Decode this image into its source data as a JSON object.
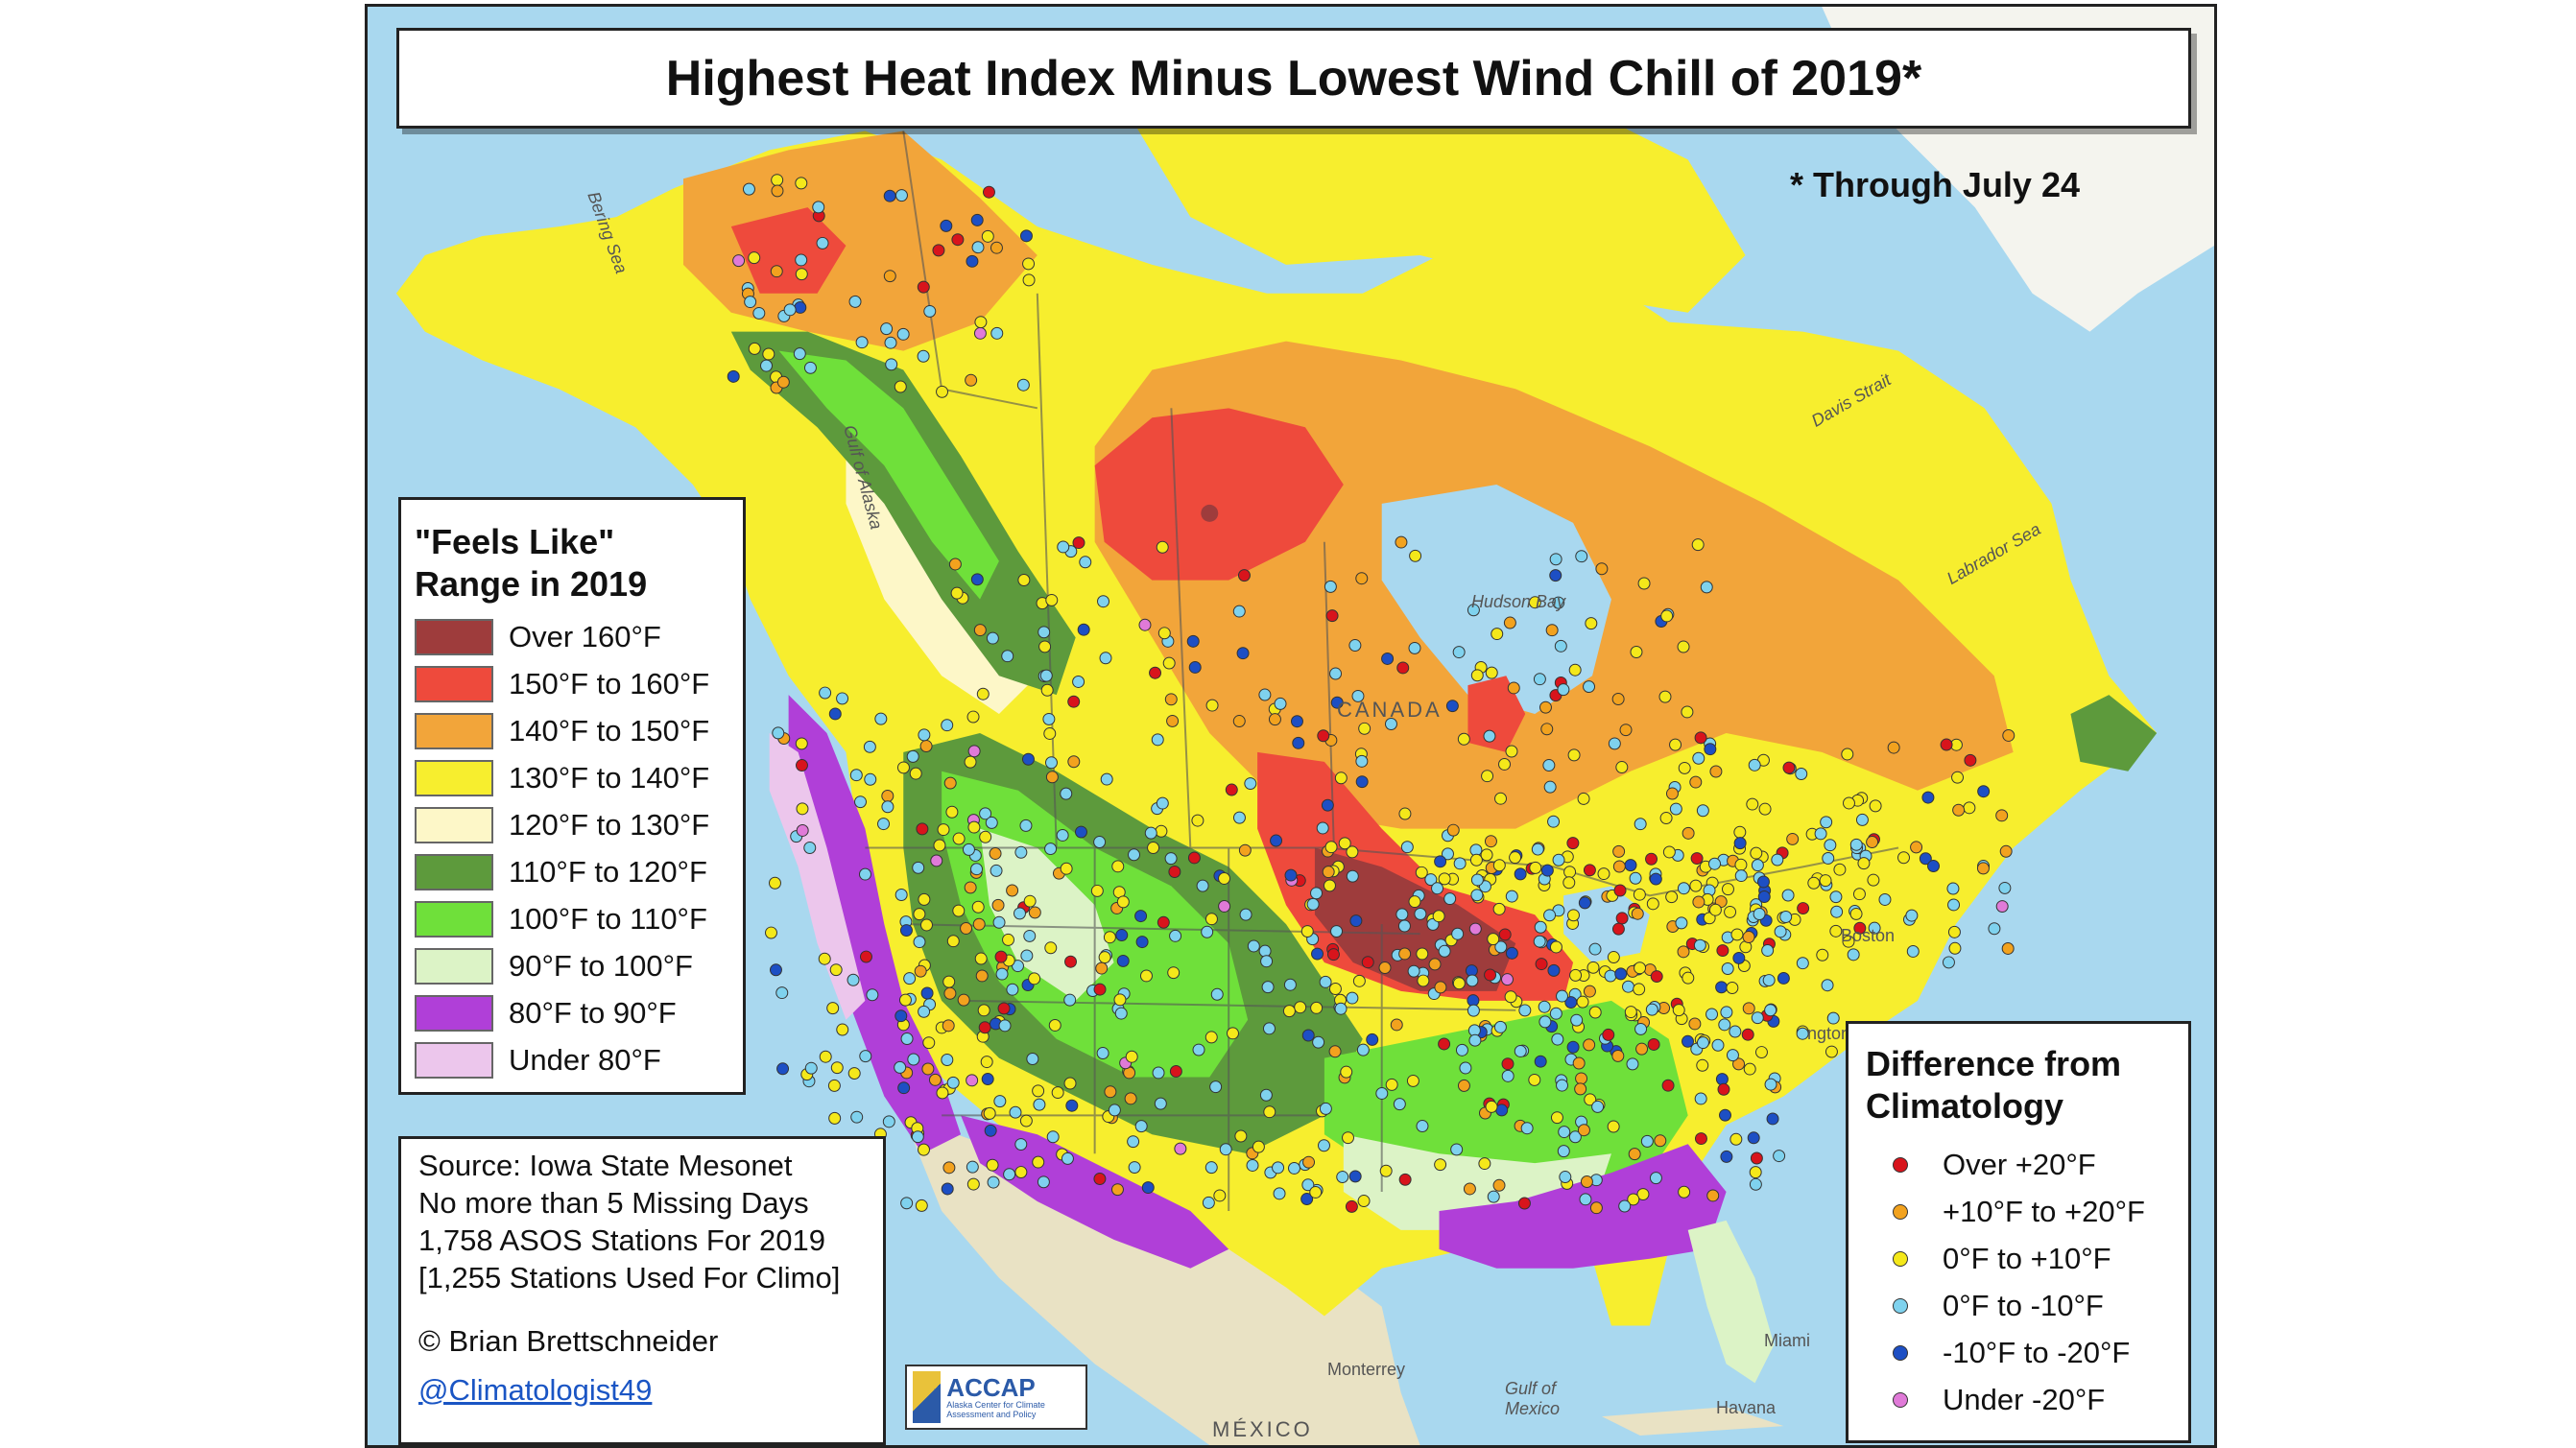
{
  "title": "Highest Heat Index Minus Lowest Wind Chill of 2019*",
  "footnote": "* Through July 24",
  "feels_legend": {
    "title_line1": "\"Feels Like\"",
    "title_line2": "Range in 2019",
    "items": [
      {
        "label": "Over 160°F",
        "color": "#9e3c3c"
      },
      {
        "label": "150°F to 160°F",
        "color": "#ee4a3c"
      },
      {
        "label": "140°F to 150°F",
        "color": "#f2a53a"
      },
      {
        "label": "130°F to 140°F",
        "color": "#f7ee2e"
      },
      {
        "label": "120°F to 130°F",
        "color": "#fdf7c8"
      },
      {
        "label": "110°F to 120°F",
        "color": "#5d9a3c"
      },
      {
        "label": "100°F to 110°F",
        "color": "#6fe03a"
      },
      {
        "label": "90°F to 100°F",
        "color": "#dcf3c6"
      },
      {
        "label": "80°F to 90°F",
        "color": "#b03fd8"
      },
      {
        "label": "Under 80°F",
        "color": "#ecc6ec"
      }
    ]
  },
  "source": {
    "line1": "Source: Iowa State Mesonet",
    "line2": "No more than 5 Missing Days",
    "line3": "1,758 ASOS Stations For 2019",
    "line4": "[1,255 Stations Used For Climo]",
    "credit": "© Brian Brettschneider",
    "handle": "@Climatologist49"
  },
  "diff_legend": {
    "title_line1": "Difference from",
    "title_line2": "Climatology",
    "items": [
      {
        "label": "Over +20°F",
        "color": "#d8141c"
      },
      {
        "label": "+10°F to +20°F",
        "color": "#f2a21e"
      },
      {
        "label": "0°F to +10°F",
        "color": "#f4e81a"
      },
      {
        "label": "0°F to -10°F",
        "color": "#7fd2ee"
      },
      {
        "label": "-10°F to -20°F",
        "color": "#1d4fc4"
      },
      {
        "label": "Under -20°F",
        "color": "#e07ad8"
      }
    ]
  },
  "geo_labels": {
    "bering": "Bering Sea",
    "alaska_gulf": "Gulf of Alaska",
    "hudson": "Hudson Bay",
    "labrador": "Labrador Sea",
    "davis": "Davis Strait",
    "canada": "CANADA",
    "mexico": "MÉXICO",
    "gulf_mexico": "Gulf of Mexico",
    "boston": "Boston",
    "washington": "ngton",
    "miami": "Miami",
    "havana": "Havana",
    "monterrey": "Monterrey"
  },
  "logo": {
    "name": "ACCAP",
    "subtitle": "Alaska Center for Climate Assessment and Policy"
  }
}
